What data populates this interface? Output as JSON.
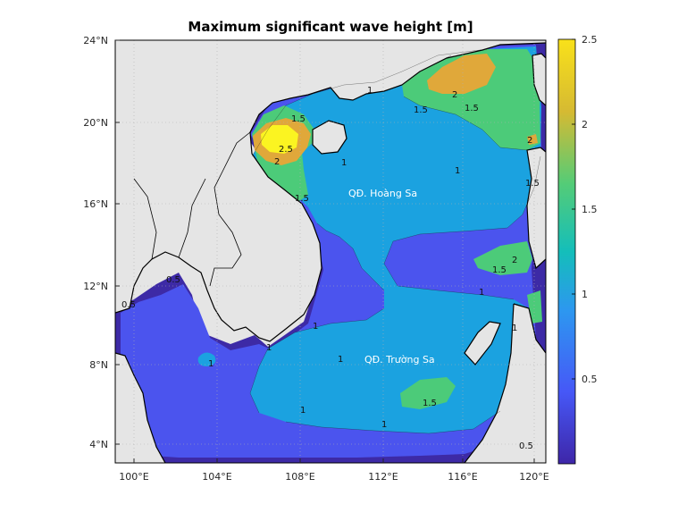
{
  "title": "Maximum significant wave height [m]",
  "map": {
    "x_ticks": [
      "100°E",
      "104°E",
      "108°E",
      "112°E",
      "116°E",
      "120°E"
    ],
    "y_ticks": [
      "24°N",
      "20°N",
      "16°N",
      "12°N",
      "8°N",
      "4°N"
    ],
    "lon_range": [
      99,
      121
    ],
    "lat_range": [
      3,
      24
    ],
    "places": [
      {
        "name": "QĐ. Hoàng Sa",
        "lon": 112,
        "lat": 16.4
      },
      {
        "name": "QĐ. Trường Sa",
        "lon": 113.8,
        "lat": 8.2
      }
    ],
    "contour_labels": [
      "2.5",
      "2",
      "1.5",
      "1",
      "1.5",
      "2",
      "1.5",
      "1.5",
      "1",
      "1",
      "1",
      "1",
      "1",
      "0.5",
      "0.5",
      "0.5",
      "2",
      "1",
      "1.5",
      "2",
      "1.5",
      "1",
      "1",
      "1",
      "1",
      "1.5"
    ]
  },
  "colorbar": {
    "ticks": [
      "2.5",
      "2",
      "1.5",
      "1",
      "0.5"
    ],
    "range": [
      0,
      2.5
    ],
    "colors": [
      "#3e26a8",
      "#4658f7",
      "#2d97f0",
      "#14beba",
      "#54cc77",
      "#d6ba32",
      "#f9e11a"
    ]
  },
  "colors": {
    "land": "#e5e5e5",
    "lev_0": "#3d2aa6",
    "lev_05": "#4b54ee",
    "lev_1": "#1ba2e0",
    "lev_15": "#4ccb79",
    "lev_2": "#e0a83a",
    "lev_25": "#fbf421"
  }
}
